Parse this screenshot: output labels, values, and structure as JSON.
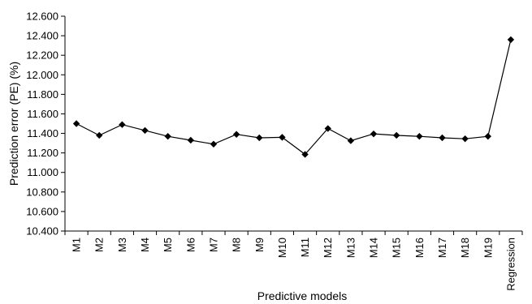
{
  "chart_data": {
    "type": "line",
    "title": "",
    "xlabel": "Predictive models",
    "ylabel": "Prediction error (PE) (%)",
    "ylim": [
      10.4,
      12.6
    ],
    "ystep": 0.2,
    "yticks": [
      "10.400",
      "10.600",
      "10.800",
      "11.000",
      "11.200",
      "11.400",
      "11.600",
      "11.800",
      "12.000",
      "12.200",
      "12.400",
      "12.600"
    ],
    "grid": false,
    "legend": "none",
    "categories": [
      "M1",
      "M2",
      "M3",
      "M4",
      "M5",
      "M6",
      "M7",
      "M8",
      "M9",
      "M10",
      "M11",
      "M12",
      "M13",
      "M14",
      "M15",
      "M16",
      "M17",
      "M18",
      "M19",
      "Regression"
    ],
    "series": [
      {
        "values": [
          11.5,
          11.38,
          11.49,
          11.43,
          11.37,
          11.33,
          11.29,
          11.39,
          11.355,
          11.36,
          11.185,
          11.45,
          11.325,
          11.395,
          11.38,
          11.37,
          11.355,
          11.345,
          11.37,
          12.36
        ],
        "color": "#000000",
        "marker": "diamond"
      }
    ]
  }
}
